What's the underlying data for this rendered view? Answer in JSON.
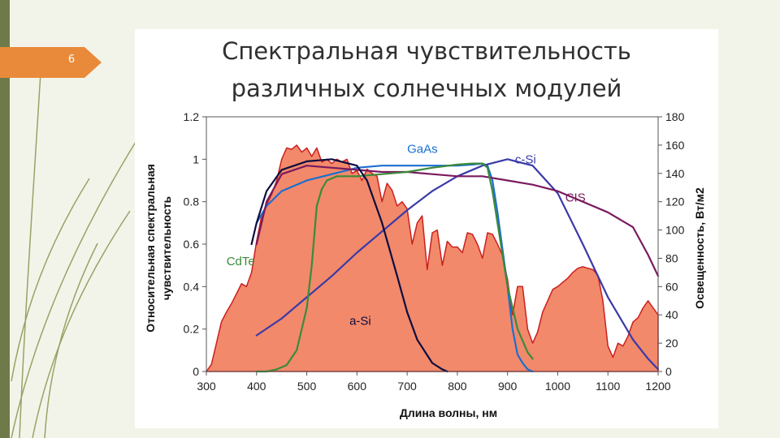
{
  "slide": {
    "page_number": "6"
  },
  "title_lines": [
    "Спектральная чувствительность",
    "различных солнечных модулей"
  ],
  "colors": {
    "irradiance_fill": "#f2896a",
    "irradiance_edge": "#cc1f1f",
    "GaAs": "#1a6fd0",
    "c-Si": "#3a3aa8",
    "CIS": "#7a1a5e",
    "CdTe": "#3a8a3a",
    "a-Si": "#0d0d40"
  },
  "chart_data": {
    "type": "area",
    "xlabel": "Длина волны, нм",
    "ylabel_lines": [
      "Относительная спектральная",
      "чувствительность"
    ],
    "y2label": "Освещенность, Вт/м2",
    "xlim": [
      300,
      1200
    ],
    "ylim": [
      0,
      1.2
    ],
    "y2lim": [
      0,
      180
    ],
    "x_ticks": [
      "300",
      "400",
      "500",
      "600",
      "700",
      "800",
      "900",
      "1000",
      "1100",
      "1200"
    ],
    "y_ticks": [
      "0",
      "0.2",
      "0.4",
      "0.6",
      "0.8",
      "1",
      "1.2"
    ],
    "y2_ticks": [
      "0",
      "20",
      "40",
      "60",
      "80",
      "100",
      "120",
      "140",
      "160",
      "180"
    ],
    "grid": false,
    "irradiance": {
      "x": [
        300,
        310,
        320,
        330,
        340,
        350,
        360,
        370,
        380,
        390,
        400,
        410,
        420,
        430,
        440,
        450,
        460,
        470,
        480,
        490,
        500,
        510,
        520,
        530,
        540,
        550,
        560,
        570,
        580,
        590,
        600,
        610,
        620,
        630,
        640,
        650,
        660,
        670,
        680,
        690,
        700,
        710,
        720,
        730,
        740,
        750,
        760,
        770,
        780,
        790,
        800,
        810,
        820,
        830,
        840,
        850,
        860,
        870,
        880,
        890,
        900,
        910,
        920,
        930,
        940,
        950,
        960,
        970,
        980,
        990,
        1000,
        1010,
        1020,
        1030,
        1040,
        1050,
        1060,
        1070,
        1080,
        1090,
        1100,
        1110,
        1120,
        1130,
        1140,
        1150,
        1160,
        1170,
        1180,
        1190,
        1200
      ],
      "values": [
        0,
        5,
        20,
        35,
        42,
        48,
        55,
        62,
        60,
        70,
        92,
        110,
        118,
        125,
        135,
        150,
        158,
        157,
        160,
        155,
        158,
        152,
        158,
        148,
        150,
        147,
        150,
        148,
        150,
        140,
        142,
        135,
        143,
        140,
        138,
        120,
        133,
        128,
        117,
        120,
        115,
        90,
        105,
        110,
        72,
        98,
        100,
        75,
        92,
        88,
        88,
        84,
        98,
        97,
        90,
        80,
        98,
        97,
        90,
        82,
        65,
        40,
        60,
        60,
        30,
        20,
        28,
        42,
        50,
        58,
        60,
        63,
        66,
        70,
        73,
        74,
        73,
        72,
        68,
        50,
        18,
        10,
        20,
        18,
        25,
        35,
        38,
        45,
        50,
        45,
        40
      ]
    },
    "series": [
      {
        "name": "GaAs",
        "x": [
          400,
          420,
          450,
          500,
          550,
          600,
          650,
          700,
          750,
          800,
          830,
          850,
          860,
          870,
          880,
          900,
          910,
          920,
          930,
          940,
          950
        ],
        "values": [
          0.7,
          0.78,
          0.85,
          0.9,
          0.93,
          0.96,
          0.97,
          0.97,
          0.97,
          0.97,
          0.975,
          0.98,
          0.97,
          0.9,
          0.75,
          0.4,
          0.2,
          0.08,
          0.04,
          0.01,
          0
        ]
      },
      {
        "name": "c-Si",
        "x": [
          400,
          450,
          500,
          550,
          600,
          650,
          700,
          750,
          800,
          850,
          900,
          950,
          1000,
          1050,
          1100,
          1150,
          1180,
          1200
        ],
        "values": [
          0.17,
          0.25,
          0.35,
          0.45,
          0.56,
          0.66,
          0.76,
          0.85,
          0.92,
          0.97,
          1.0,
          0.97,
          0.84,
          0.6,
          0.35,
          0.15,
          0.06,
          0.01
        ]
      },
      {
        "name": "CIS",
        "x": [
          400,
          420,
          450,
          500,
          550,
          600,
          650,
          700,
          750,
          800,
          850,
          900,
          950,
          1000,
          1050,
          1100,
          1150,
          1180,
          1200
        ],
        "values": [
          0.6,
          0.8,
          0.93,
          0.97,
          0.96,
          0.95,
          0.94,
          0.94,
          0.93,
          0.92,
          0.92,
          0.9,
          0.88,
          0.85,
          0.8,
          0.75,
          0.68,
          0.55,
          0.45
        ]
      },
      {
        "name": "CdTe",
        "x": [
          400,
          420,
          440,
          460,
          480,
          500,
          510,
          520,
          530,
          540,
          560,
          600,
          650,
          700,
          750,
          800,
          830,
          850,
          860,
          870,
          880,
          900,
          920,
          940,
          950
        ],
        "values": [
          0,
          0,
          0.01,
          0.03,
          0.1,
          0.3,
          0.5,
          0.78,
          0.86,
          0.9,
          0.92,
          0.92,
          0.93,
          0.94,
          0.96,
          0.975,
          0.98,
          0.98,
          0.96,
          0.85,
          0.7,
          0.4,
          0.2,
          0.09,
          0.06
        ]
      },
      {
        "name": "a-Si",
        "x": [
          390,
          400,
          420,
          450,
          500,
          550,
          600,
          620,
          650,
          680,
          700,
          720,
          750,
          770,
          780
        ],
        "values": [
          0.6,
          0.7,
          0.85,
          0.95,
          0.99,
          1.0,
          0.97,
          0.9,
          0.7,
          0.45,
          0.28,
          0.15,
          0.04,
          0.01,
          0
        ]
      }
    ],
    "labels": [
      {
        "text": "GaAs",
        "series": "GaAs",
        "x": 700,
        "y": 1.03
      },
      {
        "text": "c-Si",
        "series": "c-Si",
        "x": 915,
        "y": 0.98
      },
      {
        "text": "CIS",
        "series": "CIS",
        "x": 1015,
        "y": 0.8
      },
      {
        "text": "CdTe",
        "series": "CdTe",
        "x": 340,
        "y": 0.5
      },
      {
        "text": "a-Si",
        "series": "a-Si",
        "x": 585,
        "y": 0.22
      }
    ]
  }
}
